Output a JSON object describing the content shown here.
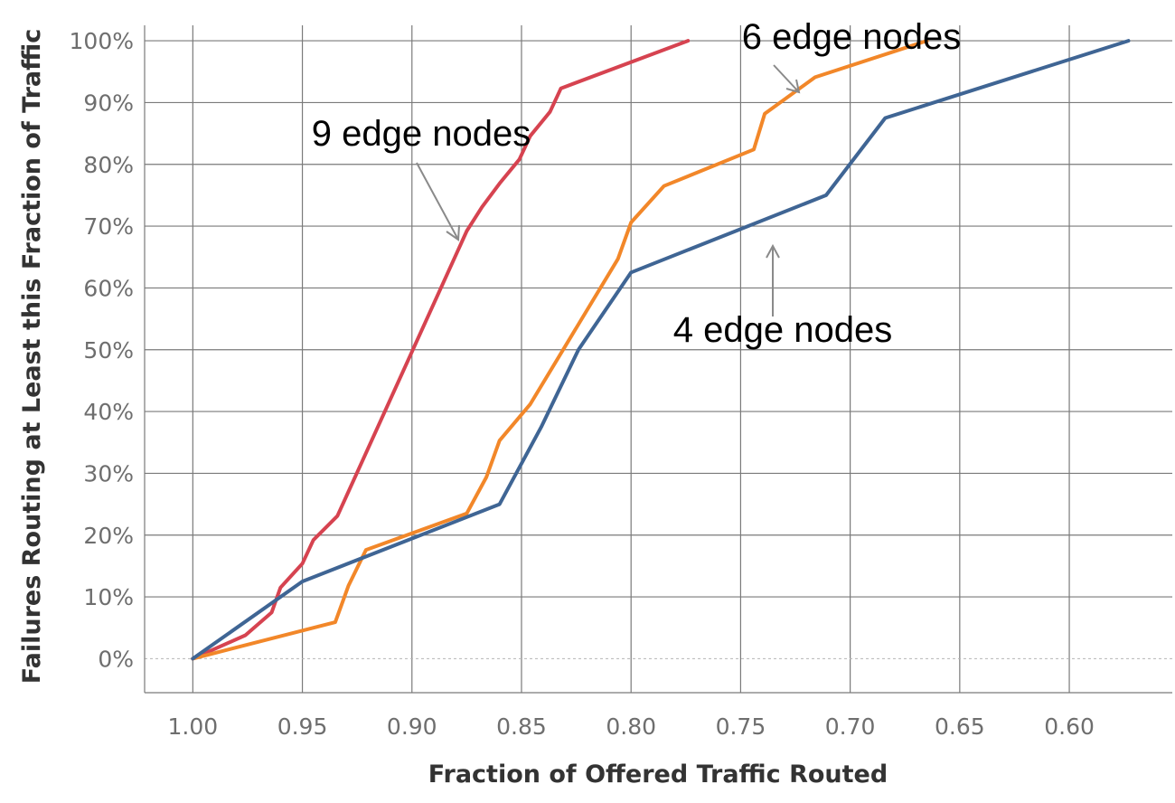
{
  "chart_data": {
    "type": "line",
    "xlabel": "Fraction of Offered Traffic Routed",
    "ylabel": "Failures Routing at Least this Fraction of Traffic",
    "xlim": [
      1.022,
      0.553
    ],
    "ylim": [
      -0.055,
      1.025
    ],
    "x_ticks": [
      1.0,
      0.95,
      0.9,
      0.85,
      0.8,
      0.75,
      0.7,
      0.65,
      0.6
    ],
    "x_tick_labels": [
      "1.00",
      "0.95",
      "0.90",
      "0.85",
      "0.80",
      "0.75",
      "0.70",
      "0.65",
      "0.60"
    ],
    "y_ticks": [
      0,
      0.1,
      0.2,
      0.3,
      0.4,
      0.5,
      0.6,
      0.7,
      0.8,
      0.9,
      1.0
    ],
    "y_tick_labels": [
      "0%",
      "10%",
      "20%",
      "30%",
      "40%",
      "50%",
      "60%",
      "70%",
      "80%",
      "90%",
      "100%"
    ],
    "grid": true,
    "series": [
      {
        "color": "#d64350",
        "x": [
          1.0,
          0.976,
          0.964,
          0.96,
          0.95,
          0.945,
          0.934,
          0.875,
          0.868,
          0.86,
          0.851,
          0.846,
          0.837,
          0.832,
          0.774
        ],
        "y": [
          0.0,
          0.038,
          0.075,
          0.115,
          0.154,
          0.192,
          0.231,
          0.692,
          0.731,
          0.769,
          0.808,
          0.846,
          0.885,
          0.923,
          1.0
        ]
      },
      {
        "color": "#f28729",
        "x": [
          1.0,
          0.935,
          0.929,
          0.921,
          0.875,
          0.866,
          0.86,
          0.846,
          0.806,
          0.8,
          0.785,
          0.744,
          0.739,
          0.716,
          0.665
        ],
        "y": [
          0.0,
          0.059,
          0.118,
          0.176,
          0.235,
          0.294,
          0.353,
          0.412,
          0.647,
          0.706,
          0.765,
          0.824,
          0.882,
          0.941,
          1.0
        ]
      },
      {
        "color": "#3f6594",
        "x": [
          1.0,
          0.95,
          0.86,
          0.841,
          0.824,
          0.8,
          0.711,
          0.684,
          0.573
        ],
        "y": [
          0.0,
          0.125,
          0.25,
          0.375,
          0.5,
          0.625,
          0.75,
          0.875,
          1.0
        ]
      }
    ],
    "annotations": [
      {
        "text": "9 edge nodes",
        "color": "#d64350"
      },
      {
        "text": "6 edge nodes",
        "color": "#f28729"
      },
      {
        "text": "4 edge nodes",
        "color": "#3f6594"
      }
    ]
  }
}
